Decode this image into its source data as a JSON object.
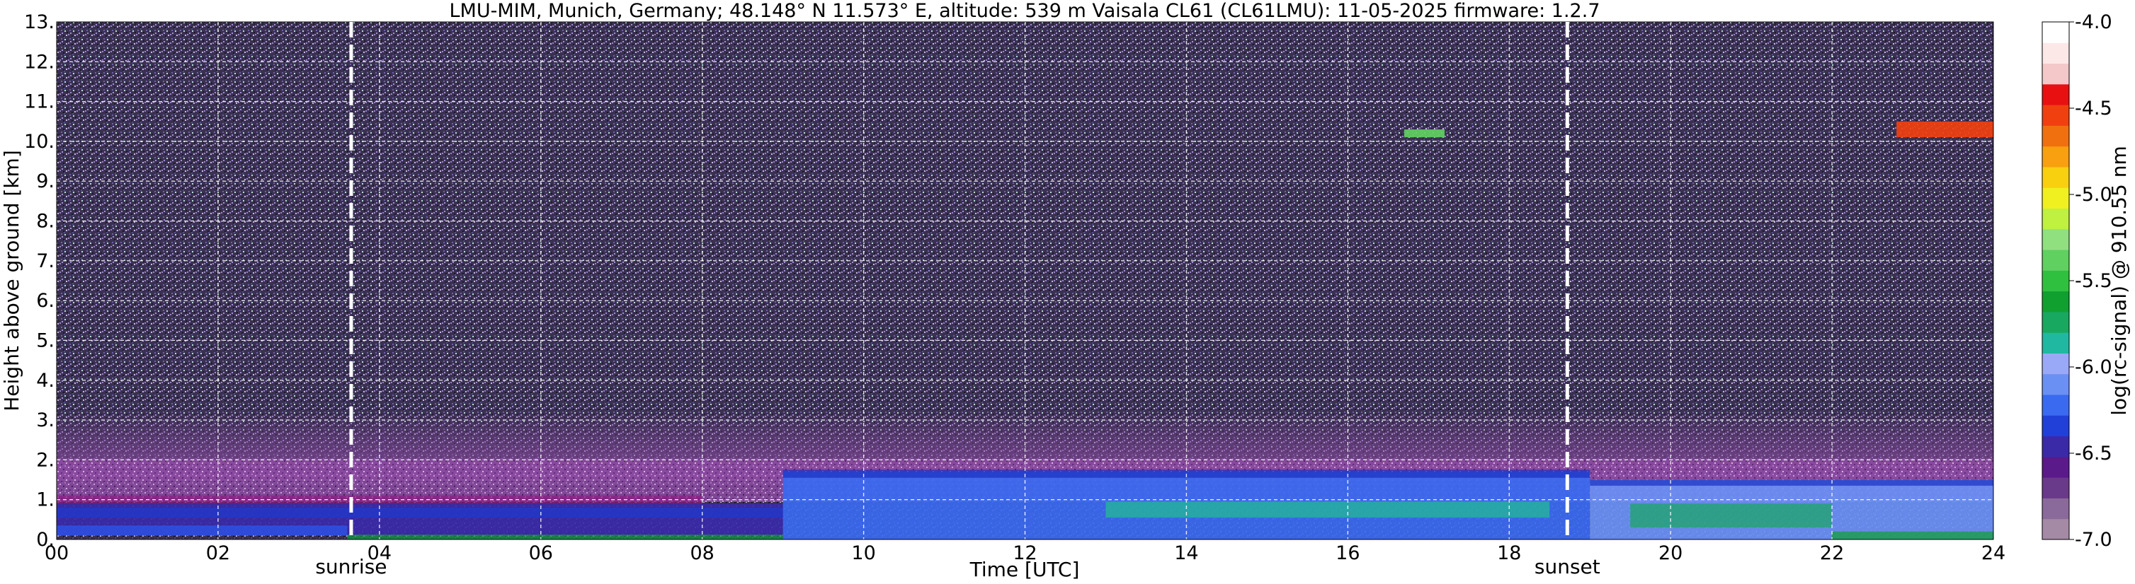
{
  "chart_data": {
    "type": "heatmap",
    "title": "LMU-MIM, Munich, Germany; 48.148° N 11.573° E, altitude: 539 m    Vaisala CL61 (CL61LMU): 11-05-2025    firmware: 1.2.7",
    "xlabel": "Time [UTC]",
    "ylabel": "Height above ground [km]",
    "x_range": [
      0,
      24
    ],
    "y_range": [
      0,
      13
    ],
    "x_ticks": [
      "00",
      "02",
      "04",
      "06",
      "08",
      "10",
      "12",
      "14",
      "16",
      "18",
      "20",
      "22",
      "24"
    ],
    "y_ticks": [
      "0.",
      "1.",
      "2.",
      "3.",
      "4.",
      "5.",
      "6.",
      "7.",
      "8.",
      "9.",
      "10.",
      "11.",
      "12.",
      "13."
    ],
    "grid": true,
    "colorbar": {
      "label": "log(rc-signal) @ 910.55 nm",
      "range": [
        -7.0,
        -4.0
      ],
      "ticks": [
        "-4.0",
        "-4.5",
        "-5.0",
        "-5.5",
        "-6.0",
        "-6.5",
        "-7.0"
      ],
      "colors": [
        "#a48aa4",
        "#8a6a9a",
        "#6a3a8a",
        "#5a1a8a",
        "#3a2aa8",
        "#2040d8",
        "#3a6af0",
        "#6a90f4",
        "#9aa8f8",
        "#20b8a0",
        "#18a860",
        "#10a030",
        "#30c040",
        "#60d060",
        "#90e080",
        "#c0f040",
        "#f0f020",
        "#f8d010",
        "#f8a010",
        "#f07010",
        "#f04010",
        "#e81010",
        "#f4c8c8",
        "#fde8e8",
        "#ffffff"
      ]
    },
    "annotations": [
      {
        "label": "sunrise",
        "time_utc": 3.65
      },
      {
        "label": "sunset",
        "time_utc": 18.72
      }
    ],
    "layers": [
      {
        "time_range": [
          0,
          24
        ],
        "height_range": [
          0,
          13
        ],
        "value": -6.8,
        "note": "noise"
      },
      {
        "time_range": [
          0,
          24
        ],
        "height_range": [
          1.0,
          2.7
        ],
        "value": -6.6
      },
      {
        "time_range": [
          0,
          9
        ],
        "height_range": [
          0.1,
          0.9
        ],
        "value": -6.45
      },
      {
        "time_range": [
          9,
          19
        ],
        "height_range": [
          0.0,
          1.7
        ],
        "value": -6.2
      },
      {
        "time_range": [
          19,
          24
        ],
        "height_range": [
          0.0,
          1.5
        ],
        "value": -6.1
      },
      {
        "time_range": [
          16.7,
          17.2
        ],
        "height_range": [
          10.1,
          10.3
        ],
        "value": -5.4
      },
      {
        "time_range": [
          22.8,
          24
        ],
        "height_range": [
          10.1,
          10.5
        ],
        "value": -4.6
      }
    ]
  }
}
